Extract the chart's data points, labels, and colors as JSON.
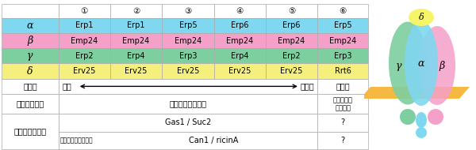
{
  "col_headers": [
    "",
    "①",
    "②",
    "③",
    "④",
    "⑤",
    "⑥"
  ],
  "rows": [
    {
      "label": "α",
      "values": [
        "Erp1",
        "Erp1",
        "Erp5",
        "Erp6",
        "Erp6",
        "Erp5"
      ],
      "color": "#7fd7f0"
    },
    {
      "label": "β",
      "values": [
        "Emp24",
        "Emp24",
        "Emp24",
        "Emp24",
        "Emp24",
        "Emp24"
      ],
      "color": "#f5a0c8"
    },
    {
      "label": "γ",
      "values": [
        "Erp2",
        "Erp4",
        "Erp3",
        "Erp4",
        "Erp2",
        "Erp3"
      ],
      "color": "#7dcfa0"
    },
    {
      "label": "δ",
      "values": [
        "Erv25",
        "Erv25",
        "Erv25",
        "Erv25",
        "Erv25",
        "Rrt6"
      ],
      "color": "#f5f07d"
    }
  ],
  "abundance_label": "存在量",
  "abundance_high": "多い",
  "abundance_low": "少ない",
  "expression_label": "発現パターン",
  "expression_main": "常に発現している",
  "expression_col6": "培養条件に\n依存する",
  "cargo_label": "積荷タンパク質",
  "cargo_main1": "Gas1 / Suc2",
  "cargo_main2": "Can1 / ricinA",
  "cargo_sub": "（候補タンパク質）",
  "cargo_q1": "?",
  "cargo_q2": "?",
  "c_alpha": "#7fd7f0",
  "c_beta": "#f5a0c8",
  "c_gamma": "#7dcfa0",
  "c_delta": "#f5f567",
  "c_membrane": "#f5b942"
}
